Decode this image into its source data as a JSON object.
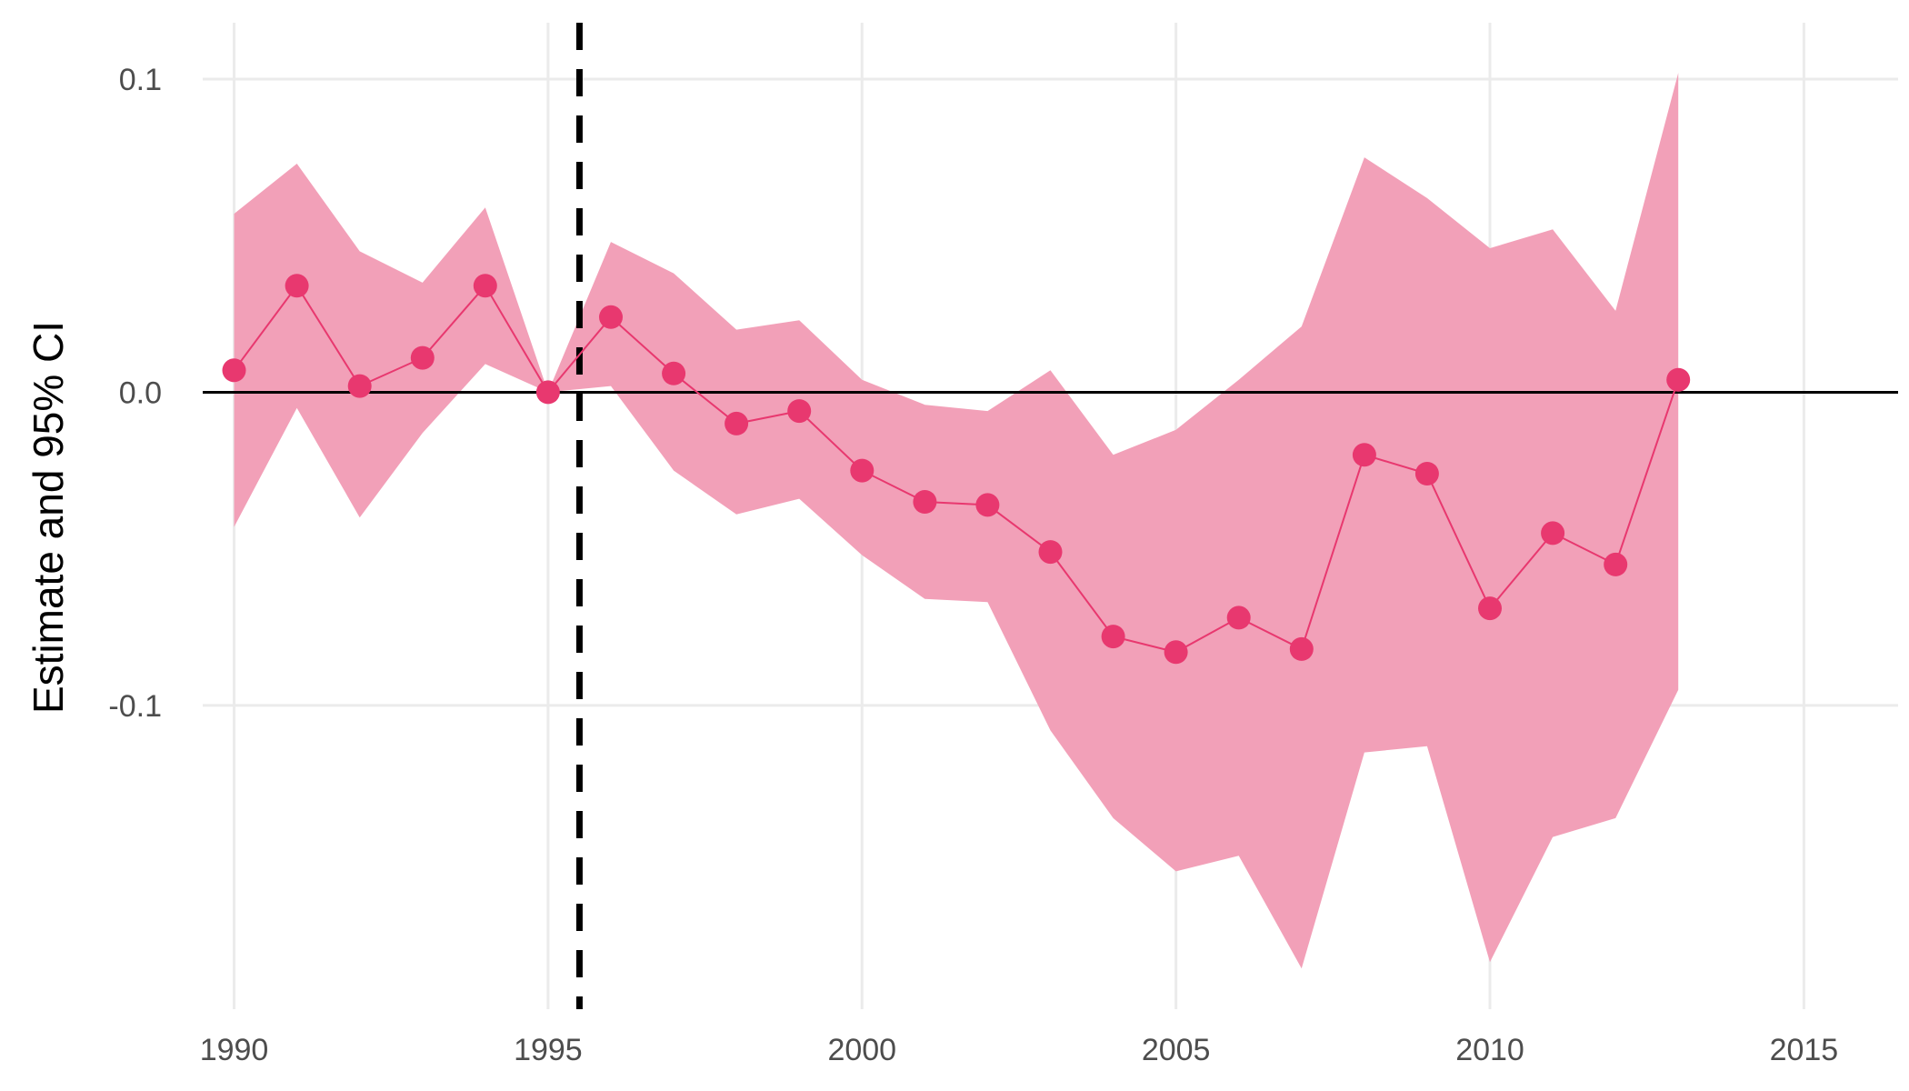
{
  "chart_data": {
    "type": "line",
    "title": "",
    "xlabel": "",
    "ylabel": "Estimate and 95% CI",
    "xlim": [
      1989.5,
      2016.5
    ],
    "ylim": [
      -0.197,
      0.118
    ],
    "x_ticks": [
      1990,
      1995,
      2000,
      2005,
      2010,
      2015
    ],
    "x_tick_labels": [
      "1990",
      "1995",
      "2000",
      "2005",
      "2010",
      "2015"
    ],
    "y_ticks": [
      0.1,
      0.0,
      -0.1
    ],
    "y_tick_labels": [
      "0.1",
      "0.0",
      "-0.1"
    ],
    "grid": true,
    "legend": "none",
    "reference_lines": {
      "horizontal_y": 0.0,
      "vertical_dashed_x": 1995.5
    },
    "colors": {
      "point": "#e8386f",
      "line": "#e8386f",
      "ribbon": "#f2a0b8",
      "reference": "#000000",
      "grid": "#ebebeb"
    },
    "series": [
      {
        "x": [
          1990,
          1991,
          1992,
          1993,
          1994,
          1995,
          1996,
          1997,
          1998,
          1999,
          2000,
          2001,
          2002,
          2003,
          2004,
          2005,
          2006,
          2007,
          2008,
          2009,
          2010,
          2011,
          2012,
          2013
        ],
        "estimate": [
          0.007,
          0.034,
          0.002,
          0.011,
          0.034,
          0.0,
          0.024,
          0.006,
          -0.01,
          -0.006,
          -0.025,
          -0.035,
          -0.036,
          -0.051,
          -0.078,
          -0.083,
          -0.072,
          -0.082,
          -0.02,
          -0.026,
          -0.069,
          -0.045,
          -0.055,
          0.004
        ],
        "lower": [
          -0.043,
          -0.005,
          -0.04,
          -0.013,
          0.009,
          0.0,
          0.002,
          -0.025,
          -0.039,
          -0.034,
          -0.052,
          -0.066,
          -0.067,
          -0.108,
          -0.136,
          -0.153,
          -0.148,
          -0.184,
          -0.115,
          -0.113,
          -0.182,
          -0.142,
          -0.136,
          -0.095
        ],
        "upper": [
          0.057,
          0.073,
          0.045,
          0.035,
          0.059,
          0.0,
          0.048,
          0.038,
          0.02,
          0.023,
          0.004,
          -0.004,
          -0.006,
          0.007,
          -0.02,
          -0.012,
          0.004,
          0.021,
          0.075,
          0.062,
          0.046,
          0.052,
          0.026,
          0.102
        ]
      }
    ]
  }
}
